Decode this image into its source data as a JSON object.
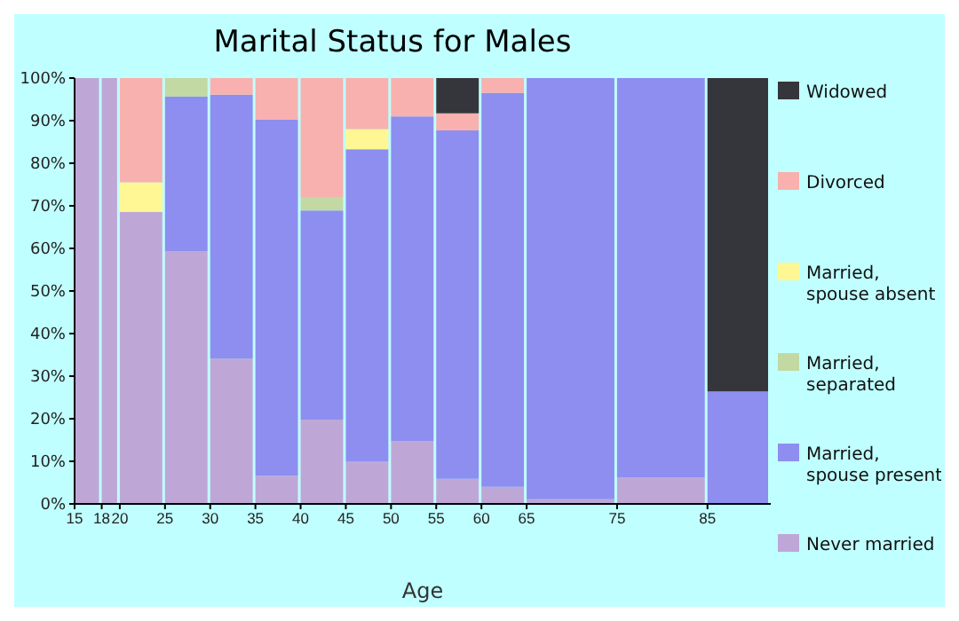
{
  "chart_data": {
    "type": "bar",
    "stacked": true,
    "title": "Marital Status for Males",
    "xlabel": "Age",
    "x": [
      16.5,
      19,
      22.5,
      27.5,
      32.5,
      37.5,
      42.5,
      47.5,
      52.5,
      57.5,
      62.5,
      70,
      80,
      88.5
    ],
    "xlim": [
      15,
      92
    ],
    "xticks": [
      15,
      18,
      20,
      25,
      30,
      35,
      40,
      45,
      50,
      55,
      60,
      65,
      75,
      85
    ],
    "ylim": [
      0,
      100
    ],
    "yticks": [
      {
        "value": 0,
        "label": "0%"
      },
      {
        "value": 10,
        "label": "10%"
      },
      {
        "value": 20,
        "label": "20%"
      },
      {
        "value": 30,
        "label": "30%"
      },
      {
        "value": 40,
        "label": "40%"
      },
      {
        "value": 50,
        "label": "50%"
      },
      {
        "value": 60,
        "label": "60%"
      },
      {
        "value": 70,
        "label": "70%"
      },
      {
        "value": 80,
        "label": "80%"
      },
      {
        "value": 90,
        "label": "90%"
      },
      {
        "value": 100,
        "label": "100%"
      }
    ],
    "grid": false,
    "legend": "right",
    "series": [
      {
        "name": "Never married",
        "color": "#bea7d7",
        "values": [
          100,
          100,
          68.6,
          59.4,
          34.1,
          6.6,
          19.8,
          9.9,
          14.7,
          5.9,
          4.0,
          1.1,
          6.2,
          0
        ]
      },
      {
        "name": "Married, spouse present",
        "color": "#8d8ef0",
        "values": [
          0,
          0,
          0,
          36.3,
          62,
          83.6,
          49.1,
          73.4,
          76.3,
          81.8,
          92.5,
          98.9,
          93.8,
          26.4
        ]
      },
      {
        "name": "Married, separated",
        "color": "#c2d9a3",
        "values": [
          0,
          0,
          0,
          4.3,
          0,
          0,
          3.2,
          0,
          0,
          0,
          0,
          0,
          0,
          0
        ]
      },
      {
        "name": "Married, spouse absent",
        "color": "#fef793",
        "values": [
          0,
          0,
          6.9,
          0,
          0,
          0,
          0,
          4.7,
          0,
          0,
          0,
          0,
          0,
          0
        ]
      },
      {
        "name": "Divorced",
        "color": "#f8b1ae",
        "values": [
          0,
          0,
          24.5,
          0,
          3.9,
          9.8,
          27.9,
          12,
          9,
          4,
          3.5,
          0,
          0,
          0
        ]
      },
      {
        "name": "Widowed",
        "color": "#35363b",
        "values": [
          0,
          0,
          0,
          0,
          0,
          0,
          0,
          0,
          0,
          8.3,
          0,
          0,
          0,
          73.6
        ]
      }
    ]
  }
}
